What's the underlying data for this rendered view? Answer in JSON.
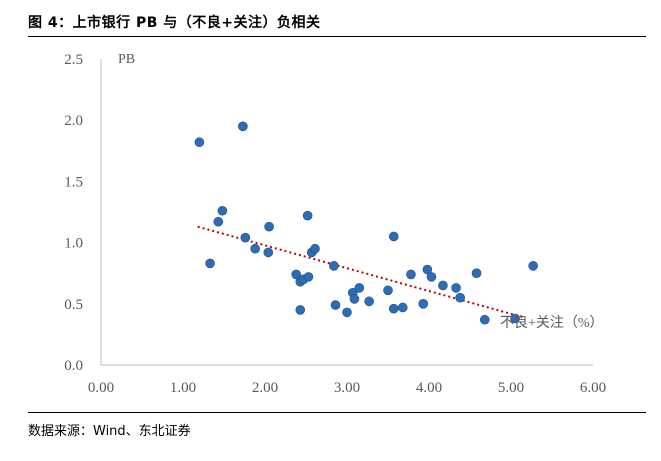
{
  "figure": {
    "title": "图 4：上市银行 PB 与（不良+关注）负相关",
    "source": "数据来源：Wind、东北证券"
  },
  "chart_data": {
    "type": "scatter",
    "ylabel": "PB",
    "xlabel": "不良+关注（%）",
    "xlim": [
      0,
      6
    ],
    "ylim": [
      0,
      2.5
    ],
    "x_ticks": [
      "0.00",
      "1.00",
      "2.00",
      "3.00",
      "4.00",
      "5.00",
      "6.00"
    ],
    "y_ticks": [
      "0.0",
      "0.5",
      "1.0",
      "1.5",
      "2.0",
      "2.5"
    ],
    "x_tick_values": [
      0,
      1,
      2,
      3,
      4,
      5,
      6
    ],
    "y_tick_values": [
      0,
      0.5,
      1.0,
      1.5,
      2.0,
      2.5
    ],
    "grid": false,
    "marker_color": "#2e6db4",
    "trendline": {
      "style": "dotted",
      "color": "#c00000",
      "from": [
        1.18,
        1.13
      ],
      "to": [
        5.15,
        0.39
      ]
    },
    "points": [
      [
        1.2,
        1.82
      ],
      [
        1.73,
        1.95
      ],
      [
        1.33,
        0.83
      ],
      [
        1.43,
        1.17
      ],
      [
        1.48,
        1.26
      ],
      [
        1.76,
        1.04
      ],
      [
        1.88,
        0.95
      ],
      [
        2.05,
        1.13
      ],
      [
        2.04,
        0.92
      ],
      [
        2.38,
        0.74
      ],
      [
        2.43,
        0.68
      ],
      [
        2.47,
        0.7
      ],
      [
        2.53,
        0.72
      ],
      [
        2.57,
        0.92
      ],
      [
        2.61,
        0.95
      ],
      [
        2.52,
        1.22
      ],
      [
        2.43,
        0.45
      ],
      [
        2.84,
        0.81
      ],
      [
        2.86,
        0.49
      ],
      [
        3.0,
        0.43
      ],
      [
        3.07,
        0.59
      ],
      [
        3.09,
        0.54
      ],
      [
        3.15,
        0.63
      ],
      [
        3.27,
        0.52
      ],
      [
        3.5,
        0.61
      ],
      [
        3.57,
        1.05
      ],
      [
        3.57,
        0.46
      ],
      [
        3.68,
        0.47
      ],
      [
        3.78,
        0.74
      ],
      [
        3.93,
        0.5
      ],
      [
        3.98,
        0.78
      ],
      [
        4.03,
        0.72
      ],
      [
        4.17,
        0.65
      ],
      [
        4.33,
        0.63
      ],
      [
        4.38,
        0.55
      ],
      [
        4.58,
        0.75
      ],
      [
        4.68,
        0.37
      ],
      [
        5.05,
        0.38
      ],
      [
        5.27,
        0.81
      ]
    ]
  }
}
